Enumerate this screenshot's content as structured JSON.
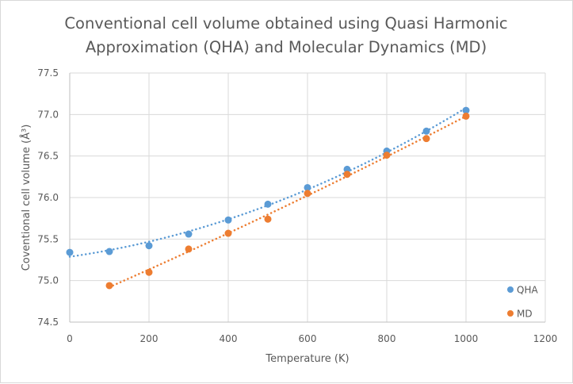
{
  "chart_data": {
    "type": "scatter",
    "title_lines": [
      "Conventional cell volume obtained using Quasi Harmonic",
      "Approximation (QHA) and Molecular Dynamics (MD)"
    ],
    "xlabel": "Temperature (K)",
    "ylabel": "Coventional cell volume (Å³)",
    "xlim": [
      0,
      1200
    ],
    "ylim": [
      74.5,
      77.5
    ],
    "x_ticks": [
      0,
      200,
      400,
      600,
      800,
      1000,
      1200
    ],
    "y_ticks": [
      74.5,
      75.0,
      75.5,
      76.0,
      76.5,
      77.0,
      77.5
    ],
    "y_tick_labels": [
      "74.5",
      "75.0",
      "75.5",
      "76.0",
      "76.5",
      "77.0",
      "77.5"
    ],
    "grid": true,
    "legend_position": "bottom-right",
    "series": [
      {
        "name": "QHA",
        "color": "#5B9BD5",
        "trendline": "polynomial",
        "x": [
          0,
          100,
          200,
          300,
          400,
          500,
          600,
          700,
          800,
          900,
          1000
        ],
        "y": [
          75.34,
          75.35,
          75.42,
          75.56,
          75.73,
          75.92,
          76.12,
          76.34,
          76.56,
          76.8,
          77.05
        ]
      },
      {
        "name": "MD",
        "color": "#ED7D31",
        "trendline": "polynomial",
        "x": [
          100,
          200,
          300,
          400,
          500,
          600,
          700,
          800,
          900,
          1000
        ],
        "y": [
          74.94,
          75.1,
          75.38,
          75.57,
          75.74,
          76.05,
          76.28,
          76.51,
          76.71,
          76.98
        ]
      }
    ]
  }
}
